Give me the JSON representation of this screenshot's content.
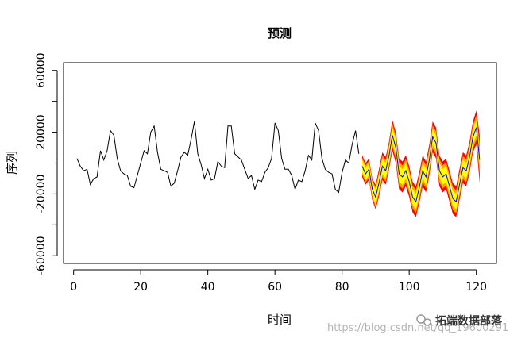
{
  "chart_data": {
    "type": "line",
    "title": "预测",
    "xlabel": "时间",
    "ylabel": "序列",
    "xlim": [
      -3,
      126
    ],
    "ylim": [
      -65000,
      65000
    ],
    "x_ticks": [
      0,
      20,
      40,
      60,
      80,
      100,
      120
    ],
    "y_ticks": [
      -60000,
      -20000,
      20000,
      60000
    ],
    "y_minor_ticks": [
      -40000,
      0,
      40000
    ],
    "grid": false,
    "legend": "none",
    "colors": {
      "series": "#000000",
      "forecast_mean": "#0000ff",
      "band_outer": "#ff0000",
      "band_mid": "#ffa500",
      "band_inner": "#ffff00"
    },
    "series": [
      {
        "role": "observed",
        "x": [
          1,
          2,
          3,
          4,
          5,
          6,
          7,
          8,
          9,
          10,
          11,
          12,
          13,
          14,
          15,
          16,
          17,
          18,
          19,
          20,
          21,
          22,
          23,
          24,
          25,
          26,
          27,
          28,
          29,
          30,
          31,
          32,
          33,
          34,
          35,
          36,
          37,
          38,
          39,
          40,
          41,
          42,
          43,
          44,
          45,
          46,
          47,
          48,
          49,
          50,
          51,
          52,
          53,
          54,
          55,
          56,
          57,
          58,
          59,
          60,
          61,
          62,
          63,
          64,
          65,
          66,
          67,
          68,
          69,
          70,
          71,
          72,
          73,
          74,
          75,
          76,
          77,
          78,
          79,
          80,
          81,
          82,
          83,
          84,
          85
        ],
        "values": [
          3000,
          -2000,
          -5000,
          -4000,
          -14000,
          -10000,
          -9000,
          8000,
          2000,
          8000,
          21000,
          18000,
          3000,
          -5000,
          -7000,
          -8000,
          -15000,
          -16000,
          -8000,
          0,
          8000,
          6000,
          20000,
          24000,
          7000,
          -4000,
          -5000,
          -6000,
          -15000,
          -13000,
          -5000,
          4000,
          7000,
          5000,
          15000,
          27000,
          6000,
          -1000,
          -10000,
          -4000,
          -11000,
          -10000,
          1000,
          -2000,
          -3000,
          24000,
          24000,
          6000,
          4000,
          2000,
          -4000,
          -10000,
          -8000,
          -17000,
          -11000,
          -12000,
          -6000,
          -3000,
          3000,
          26000,
          21000,
          3000,
          -4000,
          -4000,
          -8000,
          -17000,
          -11000,
          -12000,
          -5000,
          5000,
          2000,
          26000,
          21000,
          3000,
          -4000,
          -6000,
          -7000,
          -17000,
          -19000,
          -6000,
          2000,
          0,
          12000,
          21000,
          6000
        ]
      },
      {
        "role": "forecast",
        "x": [
          86,
          87,
          88,
          89,
          90,
          91,
          92,
          93,
          94,
          95,
          96,
          97,
          98,
          99,
          100,
          101,
          102,
          103,
          104,
          105,
          106,
          107,
          108,
          109,
          110,
          111,
          112,
          113,
          114,
          115,
          116,
          117,
          118,
          119,
          120,
          121
        ],
        "mean": [
          -2000,
          -7000,
          -4000,
          -17000,
          -22000,
          -13000,
          -2000,
          -5000,
          5000,
          18000,
          10000,
          -7000,
          -9000,
          -5000,
          -12000,
          -22000,
          -25000,
          -16000,
          -5000,
          -9000,
          2000,
          17000,
          13000,
          -5000,
          -9000,
          -7000,
          -15000,
          -23000,
          -25000,
          -14000,
          -3000,
          -5000,
          4000,
          17000,
          23000,
          2000
        ],
        "band_80": [
          [
            -6000,
            2000
          ],
          [
            -11000,
            -3000
          ],
          [
            -8000,
            0
          ],
          [
            -21000,
            -13000
          ],
          [
            -27000,
            -17000
          ],
          [
            -18000,
            -8000
          ],
          [
            -7000,
            3000
          ],
          [
            -10000,
            0
          ],
          [
            0,
            10000
          ],
          [
            13000,
            23000
          ],
          [
            5000,
            15000
          ],
          [
            -12000,
            -2000
          ],
          [
            -14000,
            -4000
          ],
          [
            -10000,
            0
          ],
          [
            -17000,
            -7000
          ],
          [
            -27000,
            -17000
          ],
          [
            -30000,
            -20000
          ],
          [
            -21000,
            -11000
          ],
          [
            -10000,
            0
          ],
          [
            -14000,
            -4000
          ],
          [
            -3000,
            7000
          ],
          [
            12000,
            22000
          ],
          [
            8000,
            18000
          ],
          [
            -10000,
            0
          ],
          [
            -14000,
            -4000
          ],
          [
            -12000,
            -2000
          ],
          [
            -20000,
            -10000
          ],
          [
            -28000,
            -18000
          ],
          [
            -30000,
            -20000
          ],
          [
            -19000,
            -9000
          ],
          [
            -8000,
            2000
          ],
          [
            -10000,
            0
          ],
          [
            -1000,
            9000
          ],
          [
            12000,
            22000
          ],
          [
            18000,
            28000
          ],
          [
            -3000,
            7000
          ]
        ],
        "band_95": [
          [
            -9000,
            5000
          ],
          [
            -14000,
            0
          ],
          [
            -11000,
            3000
          ],
          [
            -24000,
            -10000
          ],
          [
            -30000,
            -14000
          ],
          [
            -22000,
            -4000
          ],
          [
            -11000,
            7000
          ],
          [
            -14000,
            4000
          ],
          [
            -4000,
            14000
          ],
          [
            8000,
            28000
          ],
          [
            0,
            20000
          ],
          [
            -17000,
            3000
          ],
          [
            -19000,
            1000
          ],
          [
            -15000,
            5000
          ],
          [
            -22000,
            -2000
          ],
          [
            -32000,
            -12000
          ],
          [
            -35000,
            -15000
          ],
          [
            -26000,
            -6000
          ],
          [
            -15000,
            5000
          ],
          [
            -19000,
            1000
          ],
          [
            -8000,
            12000
          ],
          [
            7000,
            27000
          ],
          [
            3000,
            23000
          ],
          [
            -15000,
            5000
          ],
          [
            -19000,
            1000
          ],
          [
            -17000,
            3000
          ],
          [
            -25000,
            -5000
          ],
          [
            -33000,
            -13000
          ],
          [
            -35000,
            -15000
          ],
          [
            -24000,
            -4000
          ],
          [
            -13000,
            7000
          ],
          [
            -15000,
            5000
          ],
          [
            -6000,
            14000
          ],
          [
            7000,
            27000
          ],
          [
            12000,
            34000
          ],
          [
            -13000,
            18000
          ]
        ]
      }
    ]
  },
  "watermark": {
    "url": "https://blog.csdn.net/qq_19600291",
    "brand": "拓端数据部落"
  }
}
